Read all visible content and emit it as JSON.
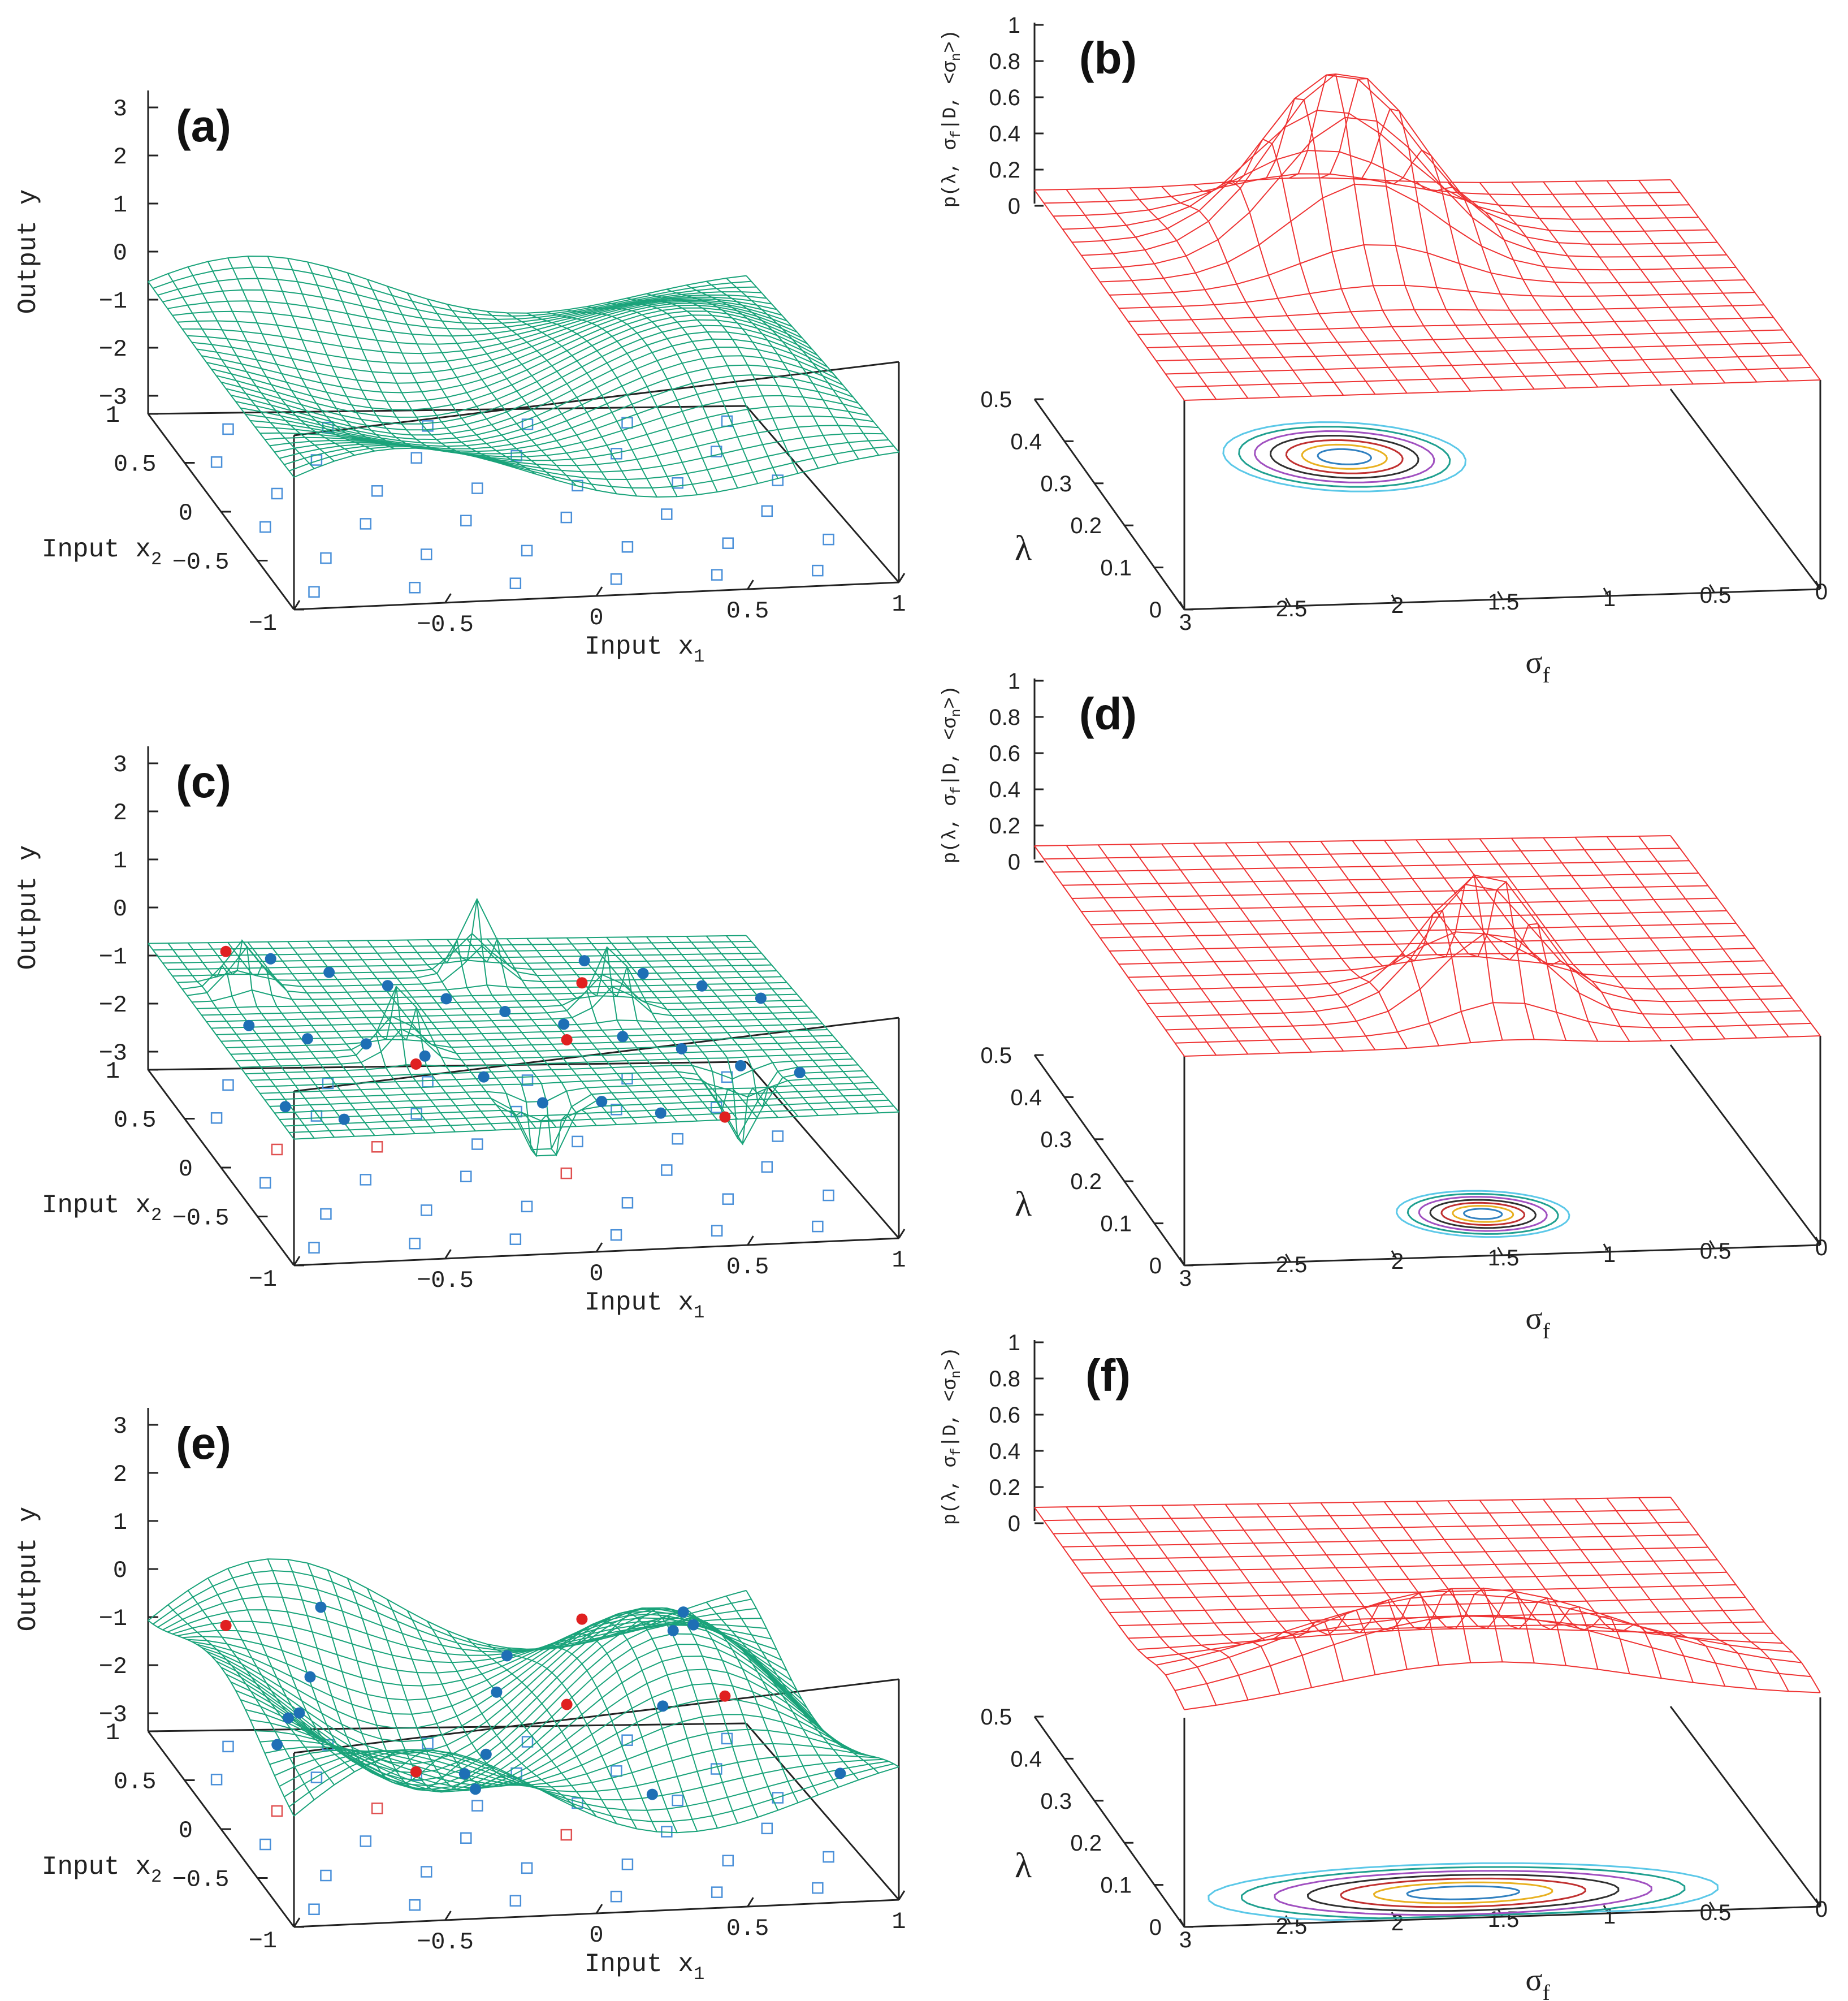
{
  "figure": {
    "colors": {
      "surface_mesh": "#1aa37a",
      "posterior_mesh": "#ee3333",
      "train_point": "#1e6fb5",
      "test_point": "#e02020",
      "grid_input": "#4a90d9",
      "grid_marked": "#e05050",
      "axis": "#222222",
      "contours": [
        "#5bc8e8",
        "#20a090",
        "#a050c0",
        "#303030",
        "#c03030",
        "#e8b020",
        "#3080c0"
      ]
    },
    "icons": {
      "train_point": "filled-circle",
      "test_point": "filled-circle",
      "grid_input": "hollow-square",
      "grid_marked": "hollow-square"
    }
  },
  "chart_data": [
    {
      "id": "a",
      "label": "(a)",
      "type": "surface3d",
      "zlabel": "Output y",
      "xlabel": "Input x",
      "xlabel_sub": "1",
      "ylabel": "Input x",
      "ylabel_sub": "2",
      "zticks": [
        "3",
        "2",
        "1",
        "0",
        "-1",
        "-2",
        "-3"
      ],
      "xticks": [
        "-1",
        "-0.5",
        "0",
        "0.5",
        "1"
      ],
      "yticks": [
        "1",
        "0.5",
        "0",
        "-0.5",
        "-1"
      ],
      "zlim": [
        -3.5,
        3.5
      ],
      "xlim": [
        -1,
        1
      ],
      "ylim": [
        -1,
        1
      ],
      "surface_shape": "smooth two-hump sinusoid, range about -3 to 1",
      "train_points": [],
      "test_points": []
    },
    {
      "id": "b",
      "label": "(b)",
      "type": "posterior3d",
      "zlabel": "p(λ, σ",
      "zlabel_sub": "f",
      "zlabel_tail": "|D, <σ",
      "zlabel_sub2": "n",
      "zlabel_end": ">)",
      "xlabel": "σ",
      "xlabel_sub": "f",
      "ylabel": "λ",
      "zticks": [
        "1",
        "0.8",
        "0.6",
        "0.4",
        "0.2",
        "0"
      ],
      "xticks": [
        "3",
        "2.5",
        "2",
        "1.5",
        "1",
        "0.5",
        "0"
      ],
      "yticks": [
        "0.5",
        "0.4",
        "0.3",
        "0.2",
        "0.1",
        "0"
      ],
      "xlim": [
        3,
        0
      ],
      "ylim": [
        0,
        0.5
      ],
      "zlim": [
        0,
        1
      ],
      "peak": {
        "sigma_f": 1.75,
        "lambda": 0.35,
        "height": 0.72,
        "width_sigma": 0.35,
        "width_lambda": 0.06
      }
    },
    {
      "id": "c",
      "label": "(c)",
      "type": "surface3d",
      "zlabel": "Output y",
      "xlabel": "Input x",
      "xlabel_sub": "1",
      "ylabel": "Input x",
      "ylabel_sub": "2",
      "zticks": [
        "3",
        "2",
        "1",
        "0",
        "-1",
        "-2",
        "-3"
      ],
      "xticks": [
        "-1",
        "-0.5",
        "0",
        "0.5",
        "1"
      ],
      "yticks": [
        "1",
        "0.5",
        "0",
        "-0.5",
        "-1"
      ],
      "zlim": [
        -3.5,
        3.5
      ],
      "xlim": [
        -1,
        1
      ],
      "ylim": [
        -1,
        1
      ],
      "surface_shape": "flat near zero with sharp spikes at data points",
      "train_points": 24,
      "test_points": 5
    },
    {
      "id": "d",
      "label": "(d)",
      "type": "posterior3d",
      "zlabel": "p(λ, σ",
      "zlabel_sub": "f",
      "zlabel_tail": "|D, <σ",
      "zlabel_sub2": "n",
      "zlabel_end": ">)",
      "xlabel": "σ",
      "xlabel_sub": "f",
      "ylabel": "λ",
      "zticks": [
        "1",
        "0.8",
        "0.6",
        "0.4",
        "0.2",
        "0"
      ],
      "xticks": [
        "3",
        "2.5",
        "2",
        "1.5",
        "1",
        "0.5",
        "0"
      ],
      "yticks": [
        "0.5",
        "0.4",
        "0.3",
        "0.2",
        "0.1",
        "0"
      ],
      "xlim": [
        3,
        0
      ],
      "ylim": [
        0,
        0.5
      ],
      "zlim": [
        0,
        1
      ],
      "peak": {
        "sigma_f": 1.45,
        "lambda": 0.1,
        "height": 0.55,
        "width_sigma": 0.25,
        "width_lambda": 0.04
      }
    },
    {
      "id": "e",
      "label": "(e)",
      "type": "surface3d",
      "zlabel": "Output y",
      "xlabel": "Input x",
      "xlabel_sub": "1",
      "ylabel": "Input x",
      "ylabel_sub": "2",
      "zticks": [
        "3",
        "2",
        "1",
        "0",
        "-1",
        "-2",
        "-3"
      ],
      "xticks": [
        "-1",
        "-0.5",
        "0",
        "0.5",
        "1"
      ],
      "yticks": [
        "1",
        "0.5",
        "0",
        "-0.5",
        "-1"
      ],
      "zlim": [
        -3.5,
        3.5
      ],
      "xlim": [
        -1,
        1
      ],
      "ylim": [
        -1,
        1
      ],
      "surface_shape": "large-amplitude oscillating surface, range about -3.5 to 1",
      "train_points": 16,
      "test_points": 5
    },
    {
      "id": "f",
      "label": "(f)",
      "type": "posterior3d",
      "zlabel": "p(λ, σ",
      "zlabel_sub": "f",
      "zlabel_tail": "|D, <σ",
      "zlabel_sub2": "n",
      "zlabel_end": ">)",
      "xlabel": "σ",
      "xlabel_sub": "f",
      "ylabel": "λ",
      "zticks": [
        "1",
        "0.8",
        "0.6",
        "0.4",
        "0.2",
        "0"
      ],
      "xticks": [
        "3",
        "2.5",
        "2",
        "1.5",
        "1",
        "0.5",
        "0"
      ],
      "yticks": [
        "0.5",
        "0.4",
        "0.3",
        "0.2",
        "0.1",
        "0"
      ],
      "xlim": [
        3,
        0
      ],
      "ylim": [
        0,
        0.5
      ],
      "zlim": [
        0,
        1
      ],
      "peak": {
        "sigma_f": 1.6,
        "lambda": 0.06,
        "height": 0.38,
        "width_sigma": 0.75,
        "width_lambda": 0.05
      }
    }
  ]
}
